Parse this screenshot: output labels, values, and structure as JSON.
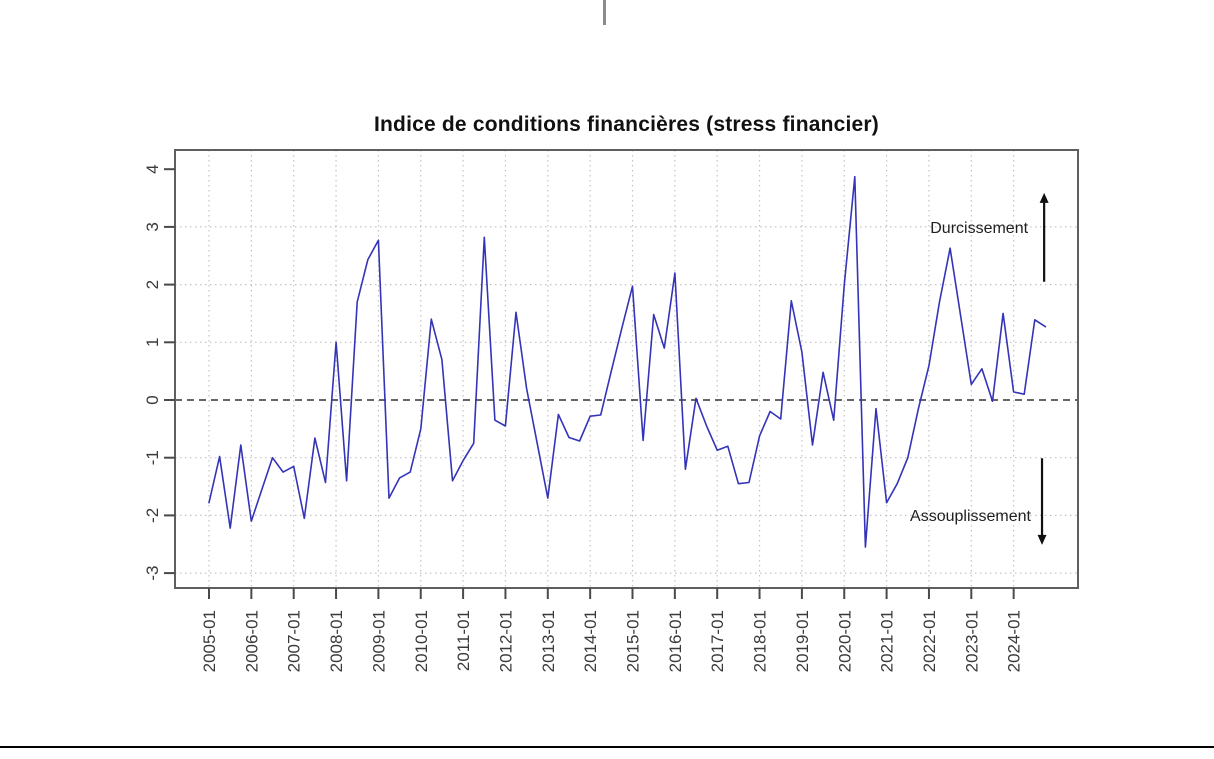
{
  "page": {
    "background": "#ffffff"
  },
  "decorations": {
    "top_center_mark_color": "#8c8c8c",
    "bottom_rule_color": "#000000"
  },
  "chart_data": {
    "type": "line",
    "title": "Indice de conditions financières (stress financier)",
    "grid": true,
    "colors": {
      "series": "#3434b8",
      "grid": "#c4c4c4",
      "zero_line": "#333333",
      "frame": "#5f5f5f",
      "tick": "#4a4a4a",
      "tick_label": "#3a3a3a",
      "annotation": "#1f1f1f",
      "arrow": "#111111"
    },
    "x_axis": {
      "tick_labels": [
        "2005-01",
        "2006-01",
        "2007-01",
        "2008-01",
        "2009-01",
        "2010-01",
        "2011-01",
        "2012-01",
        "2013-01",
        "2014-01",
        "2015-01",
        "2016-01",
        "2017-01",
        "2018-01",
        "2019-01",
        "2020-01",
        "2021-01",
        "2022-01",
        "2023-01",
        "2024-01"
      ]
    },
    "y_axis": {
      "tick_values": [
        -3,
        -2,
        -1,
        0,
        1,
        2,
        3,
        4
      ],
      "grid_y_values": [
        -3,
        -2,
        -1,
        1,
        2,
        3
      ]
    },
    "zero_line_value": 0,
    "series": [
      {
        "name": "Indice de conditions financières",
        "color": "#3434b8",
        "dates": [
          "2005-01",
          "2005-04",
          "2005-07",
          "2005-10",
          "2006-01",
          "2006-04",
          "2006-07",
          "2006-10",
          "2007-01",
          "2007-04",
          "2007-07",
          "2007-10",
          "2008-01",
          "2008-04",
          "2008-07",
          "2008-10",
          "2009-01",
          "2009-04",
          "2009-07",
          "2009-10",
          "2010-01",
          "2010-04",
          "2010-07",
          "2010-10",
          "2011-01",
          "2011-04",
          "2011-07",
          "2011-10",
          "2012-01",
          "2012-04",
          "2012-07",
          "2012-10",
          "2013-01",
          "2013-04",
          "2013-07",
          "2013-10",
          "2014-01",
          "2014-04",
          "2014-07",
          "2014-10",
          "2015-01",
          "2015-04",
          "2015-07",
          "2015-10",
          "2016-01",
          "2016-04",
          "2016-07",
          "2016-10",
          "2017-01",
          "2017-04",
          "2017-07",
          "2017-10",
          "2018-01",
          "2018-04",
          "2018-07",
          "2018-10",
          "2019-01",
          "2019-04",
          "2019-07",
          "2019-10",
          "2020-01",
          "2020-04",
          "2020-07",
          "2020-10",
          "2021-01",
          "2021-04",
          "2021-07",
          "2021-10",
          "2022-01",
          "2022-04",
          "2022-07",
          "2022-10",
          "2023-01",
          "2023-04",
          "2023-07",
          "2023-10",
          "2024-01",
          "2024-04",
          "2024-07",
          "2024-10"
        ],
        "values": [
          -1.78,
          -0.98,
          -2.22,
          -0.78,
          -2.1,
          -1.55,
          -1.0,
          -1.25,
          -1.15,
          -2.05,
          -0.66,
          -1.43,
          1.0,
          -1.4,
          1.7,
          2.43,
          2.77,
          -1.7,
          -1.35,
          -1.25,
          -0.5,
          1.4,
          0.7,
          -1.4,
          -1.05,
          -0.75,
          2.82,
          -0.35,
          -0.45,
          1.52,
          0.2,
          -0.75,
          -1.7,
          -0.25,
          -0.65,
          -0.71,
          -0.28,
          -0.26,
          0.5,
          1.25,
          1.97,
          -0.7,
          1.48,
          0.9,
          2.2,
          -1.2,
          0.03,
          -0.45,
          -0.87,
          -0.8,
          -1.45,
          -1.43,
          -0.62,
          -0.2,
          -0.33,
          1.72,
          0.83,
          -0.78,
          0.48,
          -0.35,
          2.0,
          3.87,
          -2.55,
          -0.15,
          -1.78,
          -1.45,
          -1.0,
          -0.15,
          0.6,
          1.7,
          2.63,
          1.45,
          0.27,
          0.54,
          -0.02,
          1.5,
          0.14,
          0.1,
          1.39,
          1.27
        ]
      }
    ],
    "annotations": [
      {
        "text": "Durcissement",
        "t": 2024.34,
        "v": 3.0,
        "anchor": "end"
      },
      {
        "text": "Assouplissement",
        "t": 2024.41,
        "v": -1.99,
        "anchor": "end"
      }
    ],
    "arrows": [
      {
        "direction": "up",
        "t": 2024.72,
        "v_from": 2.05,
        "v_to": 3.59
      },
      {
        "direction": "down",
        "t": 2024.67,
        "v_from": -1.01,
        "v_to": -2.51
      }
    ]
  }
}
